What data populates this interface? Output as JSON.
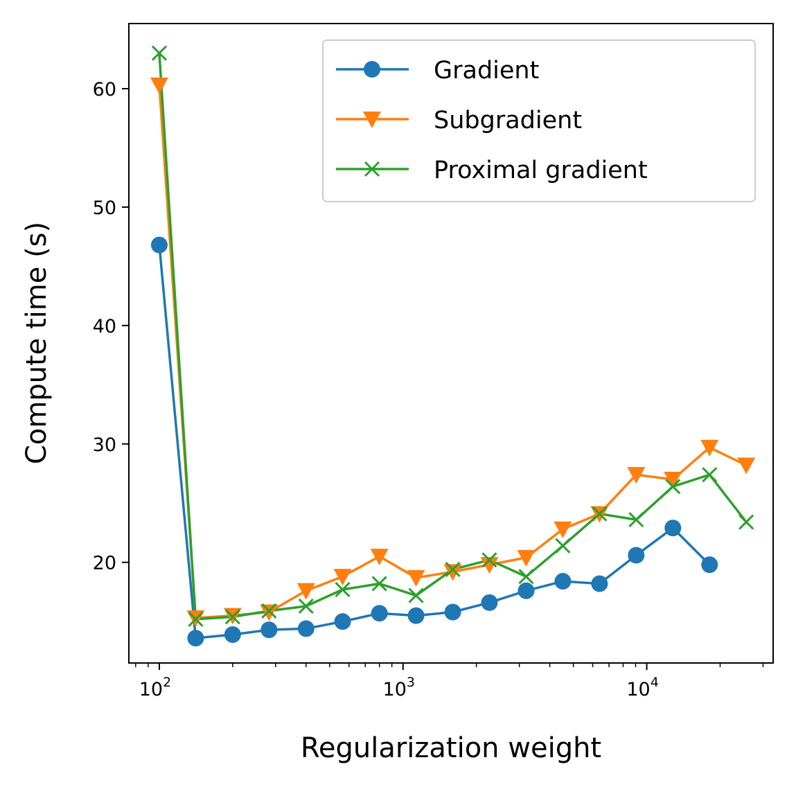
{
  "chart_data": {
    "type": "line",
    "xscale": "log",
    "xlabel": "Regularization weight",
    "ylabel": "Compute time (s)",
    "xlim": [
      75,
      33000
    ],
    "ylim": [
      11.5,
      65.5
    ],
    "xticks": [
      {
        "value": 100,
        "base": "10",
        "exp": "2"
      },
      {
        "value": 1000,
        "base": "10",
        "exp": "3"
      },
      {
        "value": 10000,
        "base": "10",
        "exp": "4"
      }
    ],
    "yticks": [
      20,
      30,
      40,
      50,
      60
    ],
    "x": [
      100,
      141,
      200,
      282,
      400,
      565,
      800,
      1131,
      1600,
      2262,
      3200,
      4525,
      6400,
      9051,
      12800,
      18102,
      25600
    ],
    "legend_position": "upper right",
    "series": [
      {
        "name": "Gradient",
        "color": "#1f77b4",
        "marker": "circle",
        "values": [
          46.8,
          13.6,
          13.9,
          14.3,
          14.4,
          15.0,
          15.7,
          15.5,
          15.8,
          16.6,
          17.6,
          18.4,
          18.2,
          20.6,
          22.9,
          19.8,
          null
        ]
      },
      {
        "name": "Subgradient",
        "color": "#ff7f0e",
        "marker": "triangle-down",
        "values": [
          60.3,
          15.3,
          15.5,
          15.8,
          17.6,
          18.8,
          20.5,
          18.7,
          19.2,
          19.8,
          20.4,
          22.8,
          24.1,
          27.4,
          27.0,
          29.7,
          28.2
        ]
      },
      {
        "name": "Proximal gradient",
        "color": "#2ca02c",
        "marker": "x",
        "values": [
          63.0,
          15.2,
          15.4,
          15.9,
          16.3,
          17.7,
          18.2,
          17.2,
          19.4,
          20.2,
          18.8,
          21.4,
          24.1,
          23.6,
          26.4,
          27.4,
          23.4
        ]
      }
    ]
  }
}
